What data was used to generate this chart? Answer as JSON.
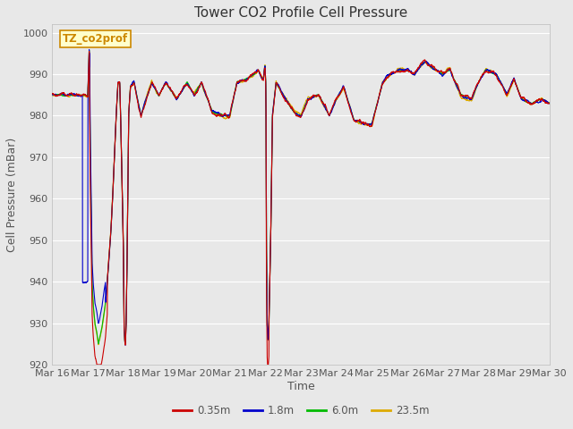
{
  "title": "Tower CO2 Profile Cell Pressure",
  "xlabel": "Time",
  "ylabel": "Cell Pressure (mBar)",
  "ylim": [
    920,
    1002
  ],
  "yticks": [
    920,
    930,
    940,
    950,
    960,
    970,
    980,
    990,
    1000
  ],
  "xtick_labels": [
    "Mar 16",
    "Mar 17",
    "Mar 18",
    "Mar 19",
    "Mar 20",
    "Mar 21",
    "Mar 22",
    "Mar 23",
    "Mar 24",
    "Mar 25",
    "Mar 26",
    "Mar 27",
    "Mar 28",
    "Mar 29",
    "Mar 30"
  ],
  "legend_label": "TZ_co2prof",
  "series_labels": [
    "0.35m",
    "1.8m",
    "6.0m",
    "23.5m"
  ],
  "series_colors": [
    "#cc0000",
    "#0000cc",
    "#00bb00",
    "#ddaa00"
  ],
  "plot_bg": "#e8e8e8",
  "fig_bg": "#e8e8e8",
  "grid_color": "#ffffff",
  "title_fontsize": 11,
  "axis_label_fontsize": 9,
  "tick_fontsize": 8,
  "legend_box_facecolor": "#ffffcc",
  "legend_box_edgecolor": "#cc8800",
  "legend_box_textcolor": "#cc8800"
}
